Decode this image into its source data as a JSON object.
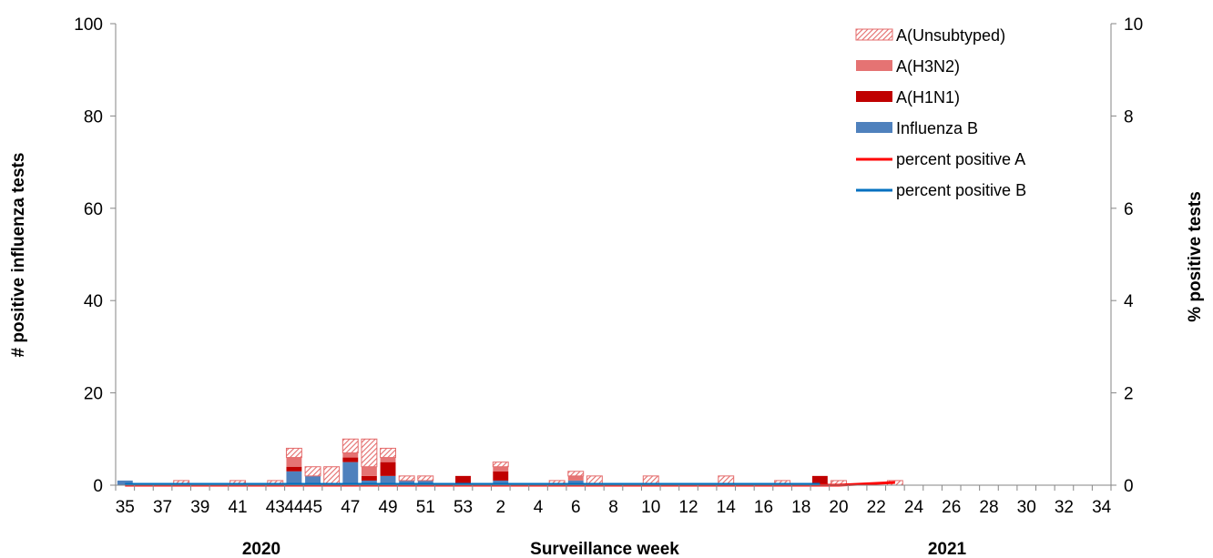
{
  "chart_data": {
    "type": "bar",
    "title": "",
    "ylabel": "# positive influenza tests",
    "y2label": "% positive tests",
    "xlabel": "Surveillance week",
    "year_labels": [
      "2020",
      "2021"
    ],
    "ylim": [
      0,
      100
    ],
    "yticks": [
      0,
      20,
      40,
      60,
      80,
      100
    ],
    "y2lim": [
      0,
      10
    ],
    "y2ticks": [
      0,
      2,
      4,
      6,
      8,
      10
    ],
    "categories": [
      "35",
      "36",
      "37",
      "38",
      "39",
      "40",
      "41",
      "42",
      "43",
      "44",
      "45",
      "46",
      "47",
      "48",
      "49",
      "50",
      "51",
      "52",
      "53",
      "1",
      "2",
      "3",
      "4",
      "5",
      "6",
      "7",
      "8",
      "9",
      "10",
      "11",
      "12",
      "13",
      "14",
      "15",
      "16",
      "17",
      "18",
      "19",
      "20",
      "21",
      "22",
      "23",
      "24",
      "25",
      "26",
      "27",
      "28",
      "29",
      "30",
      "31",
      "32",
      "33",
      "34"
    ],
    "tick_labels": [
      "35",
      "37",
      "39",
      "41",
      "43",
      "44",
      "45",
      "47",
      "49",
      "51",
      "53",
      "2",
      "4",
      "6",
      "8",
      "10",
      "12",
      "14",
      "16",
      "18",
      "20",
      "22",
      "24",
      "26",
      "28",
      "30",
      "32",
      "34"
    ],
    "legend_position": "top-right",
    "grid": false,
    "series": [
      {
        "name": "Influenza B",
        "kind": "bar",
        "color": "#4F81BD",
        "values": [
          1,
          0,
          0,
          0,
          0,
          0,
          0,
          0,
          0,
          3,
          2,
          0,
          5,
          1,
          2,
          1,
          1,
          0,
          0,
          0,
          1,
          0,
          0,
          0,
          1,
          0,
          0,
          0,
          0,
          0,
          0,
          0,
          0,
          0,
          0,
          0,
          0,
          0,
          0,
          0,
          0,
          0,
          0,
          0,
          0,
          0,
          0,
          0,
          0,
          0,
          0,
          0,
          0
        ]
      },
      {
        "name": "A(H1N1)",
        "kind": "bar",
        "color": "#C00000",
        "values": [
          0,
          0,
          0,
          0,
          0,
          0,
          0,
          0,
          0,
          1,
          0,
          0,
          1,
          1,
          3,
          0,
          0,
          0,
          2,
          0,
          2,
          0,
          0,
          0,
          0,
          0,
          0,
          0,
          0,
          0,
          0,
          0,
          0,
          0,
          0,
          0,
          0,
          2,
          0,
          0,
          0,
          0,
          0,
          0,
          0,
          0,
          0,
          0,
          0,
          0,
          0,
          0,
          0
        ]
      },
      {
        "name": "A(H3N2)",
        "kind": "bar",
        "color": "#E57373",
        "values": [
          0,
          0,
          0,
          0,
          0,
          0,
          0,
          0,
          0,
          2,
          0,
          0,
          1,
          2,
          1,
          0,
          0,
          0,
          0,
          0,
          1,
          0,
          0,
          0,
          1,
          0,
          0,
          0,
          0,
          0,
          0,
          0,
          0,
          0,
          0,
          0,
          0,
          0,
          0,
          0,
          0,
          0,
          0,
          0,
          0,
          0,
          0,
          0,
          0,
          0,
          0,
          0,
          0
        ]
      },
      {
        "name": "A(Unsubtyped)",
        "kind": "bar",
        "color": "#E46C6C",
        "pattern": "hatch",
        "values": [
          0,
          0,
          0,
          1,
          0,
          0,
          1,
          0,
          1,
          2,
          2,
          4,
          3,
          6,
          2,
          1,
          1,
          0,
          0,
          0,
          1,
          0,
          0,
          1,
          1,
          2,
          0,
          0,
          2,
          0,
          0,
          0,
          2,
          0,
          0,
          1,
          0,
          0,
          1,
          0,
          0,
          1,
          0,
          0,
          0,
          0,
          0,
          0,
          0,
          0,
          0,
          0,
          0
        ]
      },
      {
        "name": "percent positive A",
        "kind": "line",
        "color": "#FF0000",
        "axis": "right",
        "values": [
          0,
          0,
          0,
          0,
          0,
          0,
          0,
          0,
          0,
          0,
          0,
          0,
          0,
          0,
          0,
          0,
          0,
          0,
          0,
          0,
          0,
          0,
          0,
          0,
          0,
          0,
          0,
          0,
          0,
          0,
          0,
          0,
          0,
          0,
          0,
          0,
          0,
          0,
          0,
          0.02,
          0.04,
          0.06,
          null,
          null,
          null,
          null,
          null,
          null,
          null,
          null,
          null,
          null,
          null
        ]
      },
      {
        "name": "percent positive B",
        "kind": "line",
        "color": "#0070C0",
        "axis": "right",
        "values": [
          0.02,
          0.02,
          0.02,
          0.02,
          0.02,
          0.02,
          0.02,
          0.02,
          0.02,
          0.02,
          0.02,
          0.02,
          0.02,
          0.02,
          0.02,
          0.02,
          0.02,
          0.02,
          0.02,
          0.02,
          0.02,
          0.02,
          0.02,
          0.02,
          0.02,
          0.02,
          0.02,
          0.02,
          0.02,
          0.02,
          0.02,
          0.02,
          0.02,
          0.02,
          0.02,
          0.02,
          0.02,
          0.02,
          null,
          null,
          null,
          null,
          null,
          null,
          null,
          null,
          null,
          null,
          null,
          null,
          null,
          null,
          null
        ]
      }
    ]
  }
}
